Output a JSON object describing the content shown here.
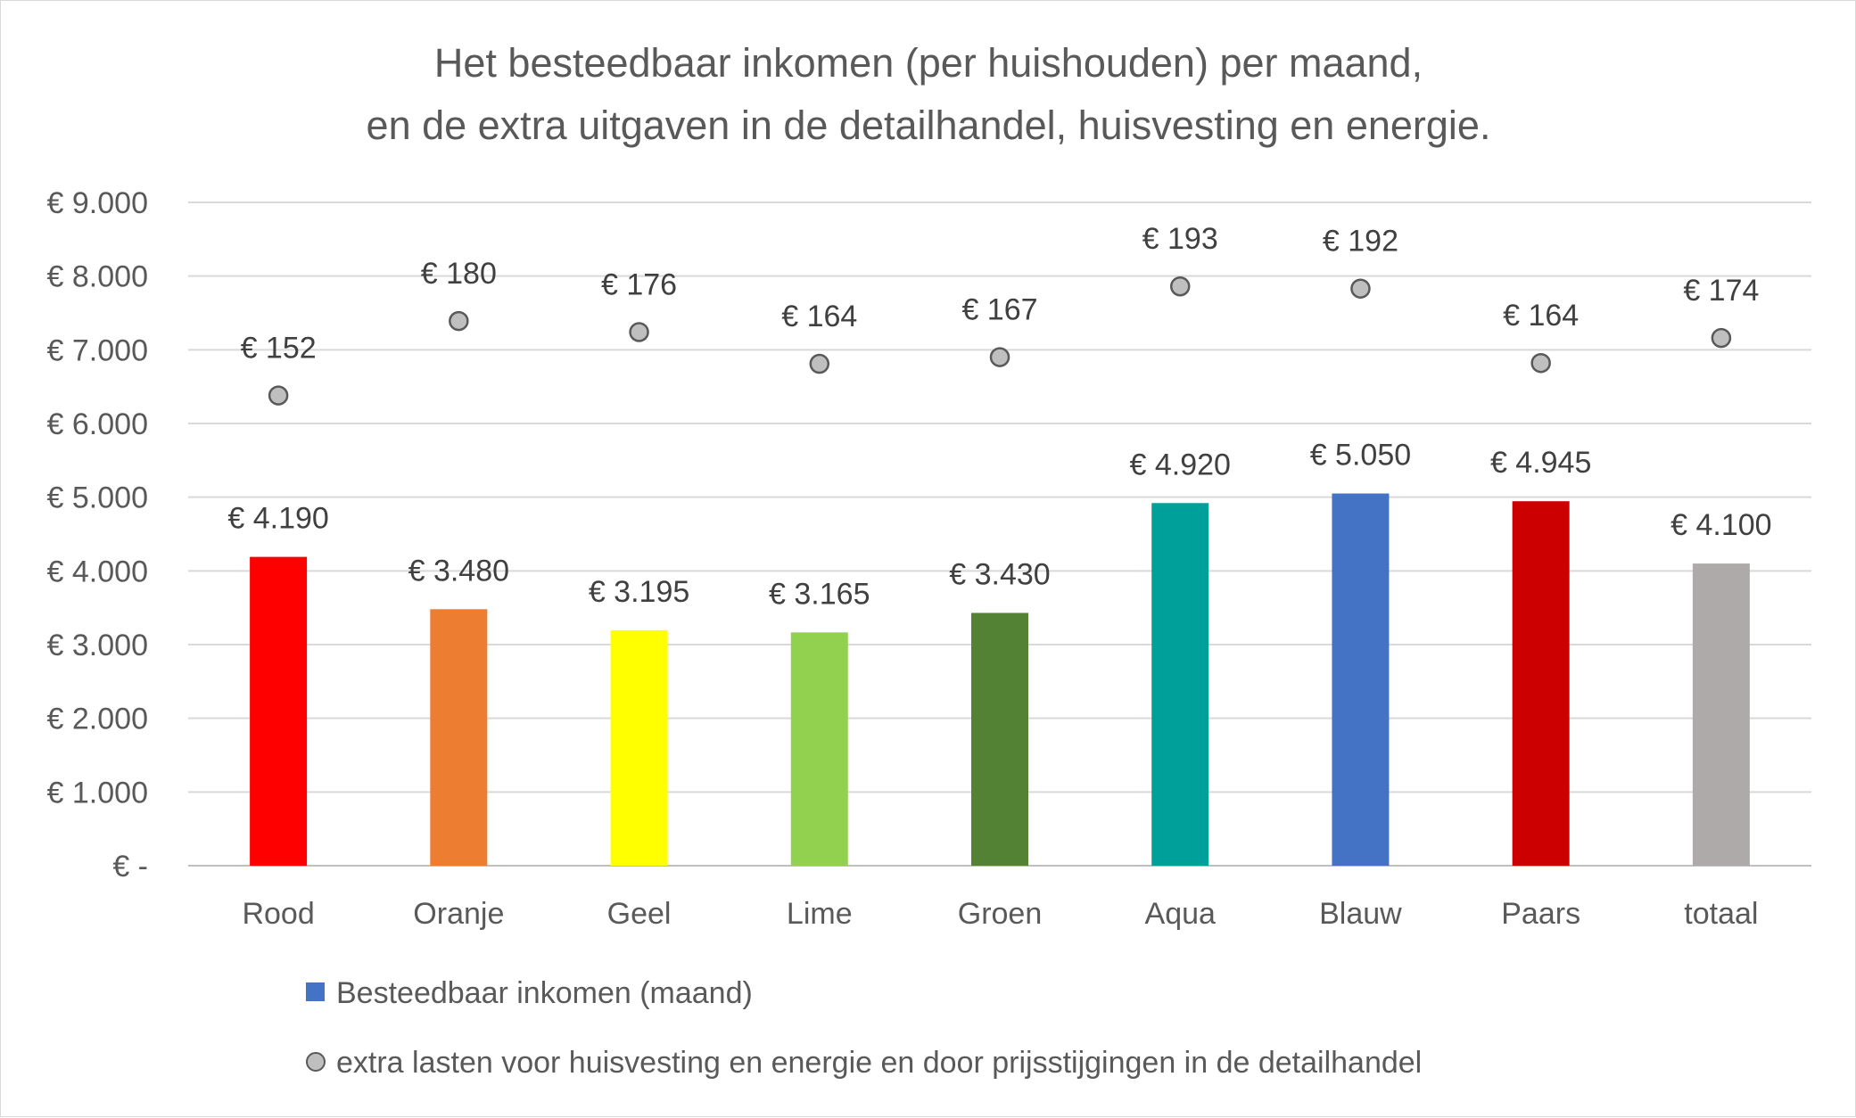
{
  "chart_data": {
    "type": "bar",
    "title_lines": [
      "Het besteedbaar inkomen (per huishouden) per maand,",
      "en de extra uitgaven in de detailhandel, huisvesting en energie."
    ],
    "categories": [
      "Rood",
      "Oranje",
      "Geel",
      "Lime",
      "Groen",
      "Aqua",
      "Blauw",
      "Paars",
      "totaal"
    ],
    "ylim": [
      0,
      9000
    ],
    "y_ticks": [
      0,
      1000,
      2000,
      3000,
      4000,
      5000,
      6000,
      7000,
      8000,
      9000
    ],
    "y_tick_labels": [
      "€ -",
      "€ 1.000",
      "€ 2.000",
      "€ 3.000",
      "€ 4.000",
      "€ 5.000",
      "€ 6.000",
      "€ 7.000",
      "€ 8.000",
      "€ 9.000"
    ],
    "grid": true,
    "legend_position": "bottom",
    "series": [
      {
        "name": "Besteedbaar inkomen (maand)",
        "type": "bar",
        "legend_color": "#4472C4",
        "values": [
          4190,
          3480,
          3195,
          3165,
          3430,
          4920,
          5050,
          4945,
          4100
        ],
        "labels": [
          "€ 4.190",
          "€ 3.480",
          "€ 3.195",
          "€ 3.165",
          "€ 3.430",
          "€ 4.920",
          "€ 5.050",
          "€ 4.945",
          "€ 4.100"
        ],
        "colors": [
          "#FF0000",
          "#ED7D31",
          "#FFFF00",
          "#92D050",
          "#548235",
          "#00A09A",
          "#4472C4",
          "#CC0000",
          "#AEAAAA"
        ]
      },
      {
        "name": "extra lasten voor huisvesting en energie en door prijsstijgingen in de detailhandel",
        "type": "scatter",
        "marker_color": "#BFBFBF",
        "marker_edge": "#595959",
        "values": [
          6380,
          7390,
          7240,
          6810,
          6900,
          7860,
          7830,
          6820,
          7160
        ],
        "labels": [
          "€ 152",
          "€ 180",
          "€ 176",
          "€ 164",
          "€ 167",
          "€ 193",
          "€ 192",
          "€ 164",
          "€ 174"
        ]
      }
    ]
  }
}
